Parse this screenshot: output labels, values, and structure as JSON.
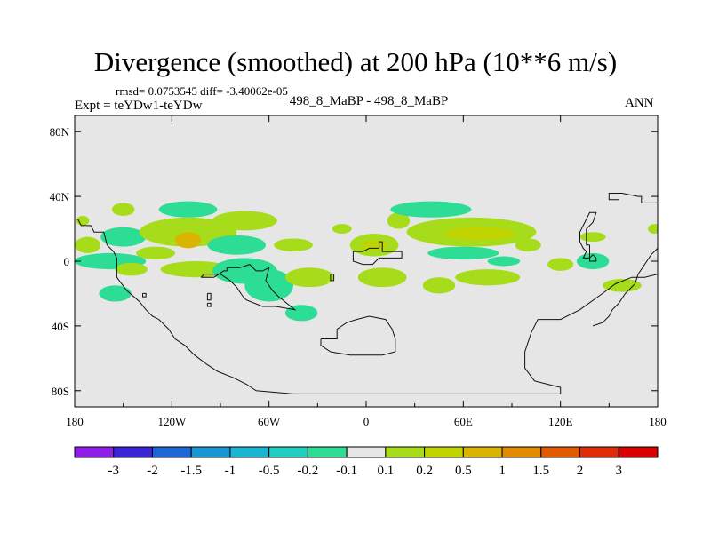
{
  "chart_data": {
    "type": "contour-map",
    "title": "Divergence (smoothed) at 200 hPa (10**6 m/s)",
    "subtitle_stats": "rmsd= 0.0753545 diff= -3.40062e-05",
    "subtitle_expt": "Expt = teYDw1-teYDw",
    "subtitle_case": "498_8_MaBP - 498_8_MaBP",
    "season": "ANN",
    "lon_range": [
      -180,
      180
    ],
    "lat_range": [
      -90,
      90
    ],
    "x_ticks": [
      {
        "value": -180,
        "label": "180"
      },
      {
        "value": -120,
        "label": "120W"
      },
      {
        "value": -60,
        "label": "60W"
      },
      {
        "value": 0,
        "label": "0"
      },
      {
        "value": 60,
        "label": "60E"
      },
      {
        "value": 120,
        "label": "120E"
      },
      {
        "value": 180,
        "label": "180"
      }
    ],
    "y_ticks": [
      {
        "value": 80,
        "label": "80N"
      },
      {
        "value": 40,
        "label": "40N"
      },
      {
        "value": 0,
        "label": "0"
      },
      {
        "value": -40,
        "label": "40S"
      },
      {
        "value": -80,
        "label": "80S"
      }
    ],
    "colorbar": {
      "levels": [
        "-3",
        "-2",
        "-1.5",
        "-1",
        "-0.5",
        "-0.2",
        "-0.1",
        "0.1",
        "0.2",
        "0.5",
        "1",
        "1.5",
        "2",
        "3"
      ],
      "colors": [
        "#8f1fe8",
        "#3a26d6",
        "#1f66d9",
        "#1897d2",
        "#1ab5d0",
        "#21cfc0",
        "#2ddc95",
        "#e6e6e6",
        "#a6dc19",
        "#c2d400",
        "#d9b400",
        "#e08a00",
        "#e25a00",
        "#e02b0a",
        "#d80000"
      ]
    },
    "anomaly_blobs": [
      {
        "lon": -172,
        "lat": 10,
        "rlon": 8,
        "rlat": 5,
        "level": "0.1-0.2"
      },
      {
        "lon": -175,
        "lat": 25,
        "rlon": 4,
        "rlat": 3,
        "level": "0.1-0.2"
      },
      {
        "lon": -150,
        "lat": 32,
        "rlon": 7,
        "rlat": 4,
        "level": "0.1-0.2"
      },
      {
        "lon": -150,
        "lat": 15,
        "rlon": 14,
        "rlat": 6,
        "level": "-0.2--0.1"
      },
      {
        "lon": -158,
        "lat": 0,
        "rlon": 22,
        "rlat": 5,
        "level": "-0.2--0.1"
      },
      {
        "lon": -155,
        "lat": -20,
        "rlon": 10,
        "rlat": 5,
        "level": "-0.2--0.1"
      },
      {
        "lon": -145,
        "lat": -5,
        "rlon": 10,
        "rlat": 4,
        "level": "0.1-0.2"
      },
      {
        "lon": -110,
        "lat": 18,
        "rlon": 30,
        "rlat": 9,
        "level": "0.1-0.2"
      },
      {
        "lon": -110,
        "lat": 13,
        "rlon": 8,
        "rlat": 5,
        "level": "0.5-1"
      },
      {
        "lon": -130,
        "lat": 5,
        "rlon": 12,
        "rlat": 4,
        "level": "0.1-0.2"
      },
      {
        "lon": -110,
        "lat": 32,
        "rlon": 18,
        "rlat": 5,
        "level": "-0.2--0.1"
      },
      {
        "lon": -75,
        "lat": 25,
        "rlon": 20,
        "rlat": 6,
        "level": "0.1-0.2"
      },
      {
        "lon": -80,
        "lat": 10,
        "rlon": 18,
        "rlat": 6,
        "level": "-0.2--0.1"
      },
      {
        "lon": -105,
        "lat": -5,
        "rlon": 22,
        "rlat": 5,
        "level": "0.1-0.2"
      },
      {
        "lon": -75,
        "lat": -6,
        "rlon": 20,
        "rlat": 8,
        "level": "-0.2--0.1"
      },
      {
        "lon": -60,
        "lat": -15,
        "rlon": 15,
        "rlat": 10,
        "level": "-0.2--0.1"
      },
      {
        "lon": -35,
        "lat": -10,
        "rlon": 15,
        "rlat": 6,
        "level": "0.1-0.2"
      },
      {
        "lon": -40,
        "lat": -32,
        "rlon": 10,
        "rlat": 5,
        "level": "-0.2--0.1"
      },
      {
        "lon": -45,
        "lat": 10,
        "rlon": 12,
        "rlat": 4,
        "level": "0.1-0.2"
      },
      {
        "lon": -15,
        "lat": 20,
        "rlon": 6,
        "rlat": 3,
        "level": "0.1-0.2"
      },
      {
        "lon": 5,
        "lat": 10,
        "rlon": 15,
        "rlat": 7,
        "level": "0.1-0.2"
      },
      {
        "lon": 5,
        "lat": 10,
        "rlon": 8,
        "rlat": 3,
        "level": "0.2-0.5"
      },
      {
        "lon": 10,
        "lat": -10,
        "rlon": 15,
        "rlat": 6,
        "level": "0.1-0.2"
      },
      {
        "lon": 20,
        "lat": 25,
        "rlon": 7,
        "rlat": 5,
        "level": "0.1-0.2"
      },
      {
        "lon": 40,
        "lat": 32,
        "rlon": 25,
        "rlat": 5,
        "level": "-0.2--0.1"
      },
      {
        "lon": 65,
        "lat": 18,
        "rlon": 40,
        "rlat": 9,
        "level": "0.1-0.2"
      },
      {
        "lon": 70,
        "lat": 17,
        "rlon": 22,
        "rlat": 4,
        "level": "0.2-0.5"
      },
      {
        "lon": 60,
        "lat": 5,
        "rlon": 22,
        "rlat": 4,
        "level": "-0.2--0.1"
      },
      {
        "lon": 45,
        "lat": -15,
        "rlon": 10,
        "rlat": 5,
        "level": "0.1-0.2"
      },
      {
        "lon": 75,
        "lat": -10,
        "rlon": 20,
        "rlat": 5,
        "level": "0.1-0.2"
      },
      {
        "lon": 85,
        "lat": 0,
        "rlon": 10,
        "rlat": 3,
        "level": "-0.2--0.1"
      },
      {
        "lon": 100,
        "lat": 10,
        "rlon": 8,
        "rlat": 4,
        "level": "0.1-0.2"
      },
      {
        "lon": 120,
        "lat": -2,
        "rlon": 8,
        "rlat": 4,
        "level": "0.1-0.2"
      },
      {
        "lon": 140,
        "lat": 0,
        "rlon": 10,
        "rlat": 5,
        "level": "-0.2--0.1"
      },
      {
        "lon": 140,
        "lat": 15,
        "rlon": 8,
        "rlat": 3,
        "level": "0.1-0.2"
      },
      {
        "lon": 158,
        "lat": -15,
        "rlon": 12,
        "rlat": 4,
        "level": "0.1-0.2"
      },
      {
        "lon": 178,
        "lat": 20,
        "rlon": 4,
        "rlat": 3,
        "level": "0.1-0.2"
      }
    ],
    "land_outlines": [
      {
        "name": "americas",
        "points": [
          [
            -180,
            26
          ],
          [
            -178,
            26
          ],
          [
            -176,
            22
          ],
          [
            -170,
            22
          ],
          [
            -168,
            18
          ],
          [
            -162,
            18
          ],
          [
            -160,
            10
          ],
          [
            -156,
            6
          ],
          [
            -154,
            2
          ],
          [
            -154,
            -10
          ],
          [
            -148,
            -18
          ],
          [
            -140,
            -25
          ],
          [
            -136,
            -30
          ],
          [
            -132,
            -34
          ],
          [
            -128,
            -36
          ],
          [
            -122,
            -42
          ],
          [
            -118,
            -48
          ],
          [
            -112,
            -52
          ],
          [
            -106,
            -58
          ],
          [
            -98,
            -64
          ],
          [
            -92,
            -68
          ],
          [
            -82,
            -72
          ],
          [
            -74,
            -76
          ],
          [
            -68,
            -80
          ],
          [
            -45,
            -82
          ],
          [
            -25,
            -82
          ],
          [
            5,
            -82
          ],
          [
            40,
            -82
          ],
          [
            75,
            -82
          ],
          [
            100,
            -82
          ],
          [
            112,
            -82
          ],
          [
            120,
            -82
          ],
          [
            120,
            -78
          ],
          [
            112,
            -76
          ],
          [
            104,
            -74
          ],
          [
            98,
            -66
          ],
          [
            98,
            -56
          ],
          [
            102,
            -44
          ],
          [
            106,
            -36
          ],
          [
            120,
            -36
          ],
          [
            132,
            -30
          ],
          [
            146,
            -20
          ],
          [
            154,
            -14
          ],
          [
            164,
            -10
          ],
          [
            172,
            -10
          ],
          [
            180,
            -8
          ]
        ]
      },
      {
        "name": "greenland",
        "points": [
          [
            156,
            38
          ],
          [
            150,
            38
          ],
          [
            150,
            42
          ],
          [
            158,
            42
          ],
          [
            168,
            40
          ],
          [
            170,
            40
          ],
          [
            170,
            36
          ],
          [
            180,
            36
          ]
        ]
      },
      {
        "name": "central-west",
        "points": [
          [
            -102,
            -10
          ],
          [
            -94,
            -10
          ],
          [
            -88,
            -6
          ],
          [
            -86,
            -6
          ],
          [
            -86,
            -4
          ],
          [
            -78,
            -4
          ],
          [
            -72,
            -2
          ],
          [
            -68,
            -6
          ],
          [
            -64,
            -6
          ],
          [
            -60,
            -4
          ],
          [
            -62,
            -12
          ],
          [
            -58,
            -18
          ],
          [
            -54,
            -22
          ],
          [
            -44,
            -30
          ],
          [
            -56,
            -28
          ],
          [
            -64,
            -28
          ],
          [
            -74,
            -24
          ],
          [
            -76,
            -22
          ],
          [
            -80,
            -16
          ],
          [
            -84,
            -12
          ],
          [
            -90,
            -8
          ],
          [
            -100,
            -8
          ],
          [
            -102,
            -10
          ]
        ]
      },
      {
        "name": "pacific-isle-1",
        "points": [
          [
            -138,
            -20
          ],
          [
            -136,
            -20
          ],
          [
            -136,
            -22
          ],
          [
            -138,
            -22
          ],
          [
            -138,
            -20
          ]
        ]
      },
      {
        "name": "pacific-isle-2",
        "points": [
          [
            -98,
            -20
          ],
          [
            -96,
            -20
          ],
          [
            -96,
            -24
          ],
          [
            -98,
            -24
          ],
          [
            -98,
            -20
          ]
        ]
      },
      {
        "name": "pacific-isle-3",
        "points": [
          [
            -98,
            -26
          ],
          [
            -96,
            -26
          ],
          [
            -96,
            -28
          ],
          [
            -98,
            -28
          ],
          [
            -98,
            -26
          ]
        ]
      },
      {
        "name": "antarctic-peninsula",
        "points": [
          [
            -28,
            -48
          ],
          [
            -18,
            -48
          ],
          [
            -18,
            -42
          ],
          [
            -12,
            -38
          ],
          [
            -6,
            -36
          ],
          [
            2,
            -34
          ],
          [
            12,
            -36
          ],
          [
            16,
            -42
          ],
          [
            18,
            -48
          ],
          [
            18,
            -56
          ],
          [
            10,
            -58
          ],
          [
            0,
            -58
          ],
          [
            -10,
            -58
          ],
          [
            -22,
            -56
          ],
          [
            -28,
            -52
          ],
          [
            -28,
            -48
          ]
        ]
      },
      {
        "name": "equatorial-africa",
        "points": [
          [
            -8,
            6
          ],
          [
            -2,
            6
          ],
          [
            2,
            8
          ],
          [
            8,
            8
          ],
          [
            8,
            12
          ],
          [
            10,
            12
          ],
          [
            10,
            6
          ],
          [
            16,
            6
          ],
          [
            22,
            6
          ],
          [
            22,
            2
          ],
          [
            16,
            2
          ],
          [
            8,
            2
          ],
          [
            4,
            -2
          ],
          [
            -2,
            -2
          ],
          [
            -8,
            0
          ],
          [
            -8,
            6
          ]
        ]
      },
      {
        "name": "sumatra",
        "points": [
          [
            138,
            10
          ],
          [
            136,
            10
          ],
          [
            136,
            20
          ],
          [
            140,
            24
          ],
          [
            142,
            30
          ],
          [
            138,
            30
          ],
          [
            136,
            26
          ],
          [
            134,
            22
          ],
          [
            132,
            18
          ],
          [
            132,
            12
          ],
          [
            134,
            8
          ],
          [
            136,
            6
          ],
          [
            134,
            2
          ],
          [
            138,
            2
          ],
          [
            140,
            4
          ],
          [
            142,
            2
          ],
          [
            142,
            0
          ],
          [
            138,
            0
          ],
          [
            138,
            10
          ]
        ]
      },
      {
        "name": "east-coast",
        "points": [
          [
            180,
            8
          ],
          [
            176,
            4
          ],
          [
            172,
            -2
          ],
          [
            168,
            -8
          ],
          [
            166,
            -14
          ],
          [
            160,
            -20
          ],
          [
            156,
            -26
          ],
          [
            152,
            -30
          ],
          [
            150,
            -34
          ],
          [
            146,
            -38
          ],
          [
            140,
            -40
          ]
        ]
      },
      {
        "name": "lake",
        "points": [
          [
            -22,
            -8
          ],
          [
            -20,
            -8
          ],
          [
            -20,
            -12
          ],
          [
            -22,
            -12
          ],
          [
            -22,
            -8
          ]
        ]
      }
    ]
  }
}
